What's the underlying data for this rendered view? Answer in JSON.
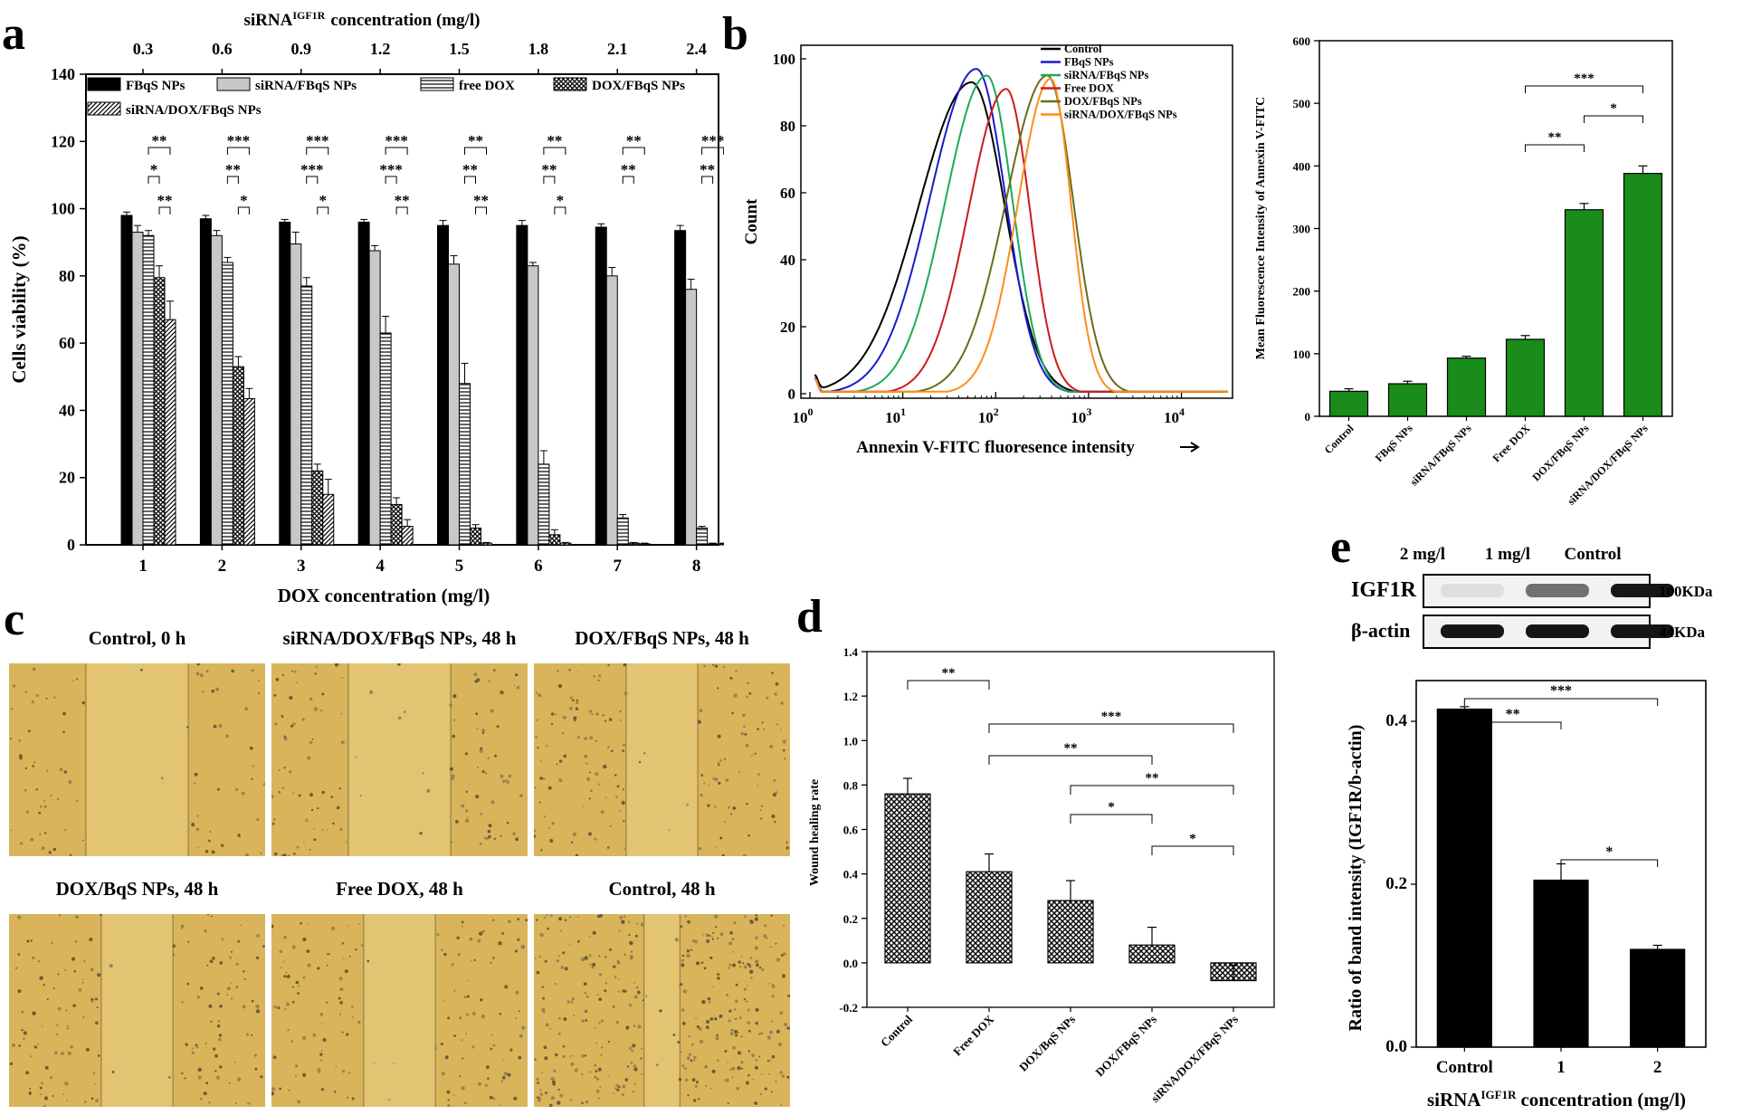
{
  "chart_data": [
    {
      "panel": "a",
      "type": "bar",
      "xlabel": "DOX concentration (mg/l)",
      "ylabel": "Cells viability (%)",
      "top_axis_label_main": "siRNA",
      "top_axis_label_sup": "IGF1R",
      "top_axis_label_rest": "concentration (mg/l)",
      "categories": [
        "1",
        "2",
        "3",
        "4",
        "5",
        "6",
        "7",
        "8"
      ],
      "top_categories": [
        "0.3",
        "0.6",
        "0.9",
        "1.2",
        "1.5",
        "1.8",
        "2.1",
        "2.4"
      ],
      "ylim": [
        0,
        140
      ],
      "yticks": [
        0,
        20,
        40,
        60,
        80,
        100,
        120,
        140
      ],
      "series": [
        {
          "name": "FBqS NPs",
          "fill": "solid-black",
          "values": [
            98,
            97,
            96,
            96,
            95,
            95,
            94.5,
            93.5
          ],
          "errors": [
            1,
            1,
            0.8,
            0.8,
            1.5,
            1.5,
            1,
            1.5
          ]
        },
        {
          "name": "siRNA/FBqS NPs",
          "fill": "light-gray",
          "values": [
            93,
            92,
            89.5,
            87.5,
            83.5,
            83,
            80,
            76
          ],
          "errors": [
            2,
            1.5,
            3.5,
            1.5,
            2.5,
            1,
            2.5,
            3
          ]
        },
        {
          "name": "free DOX",
          "fill": "horizontal-lines",
          "values": [
            92,
            84,
            77,
            63,
            48,
            24,
            8,
            5
          ],
          "errors": [
            1.5,
            1.5,
            2.5,
            5,
            6,
            4,
            1,
            0.5
          ]
        },
        {
          "name": "DOX/FBqS NPs",
          "fill": "crosshatch",
          "values": [
            79.5,
            53,
            22,
            12,
            5,
            3,
            0.5,
            0.3
          ],
          "errors": [
            3.5,
            3,
            2,
            2,
            1,
            1.5,
            0.2,
            0.2
          ]
        },
        {
          "name": "siRNA/DOX/FBqS NPs",
          "fill": "diagonal-lines",
          "values": [
            67,
            43.5,
            15,
            5.5,
            0.5,
            0.5,
            0.3,
            0.3
          ],
          "errors": [
            5.5,
            3,
            4.5,
            2,
            0.2,
            0.2,
            0.2,
            0.2
          ]
        }
      ],
      "significance_rows": [
        [
          "**",
          "***",
          "***",
          "***",
          "**",
          "**",
          "**",
          "***"
        ],
        [
          "*",
          "**",
          "***",
          "***",
          "**",
          "**",
          "**",
          "**"
        ],
        [
          "**",
          "*",
          "*",
          "**",
          "**",
          "*",
          "",
          ""
        ]
      ]
    },
    {
      "panel": "b-left",
      "type": "line",
      "xlabel": "Annexin V-FITC fluoresence intensity",
      "ylabel": "Count",
      "x_scale": "log",
      "xticks_base": "10",
      "xticks_exp": [
        "0",
        "1",
        "2",
        "3",
        "4"
      ],
      "ylim": [
        0,
        100
      ],
      "yticks": [
        0,
        20,
        40,
        60,
        80,
        100
      ],
      "series": [
        {
          "name": "Control",
          "color": "#000000",
          "peak_x": 55,
          "peak_y": 93,
          "width": 0.42
        },
        {
          "name": "FBqS NPs",
          "color": "#1a1acc",
          "peak_x": 62,
          "peak_y": 97,
          "width": 0.37
        },
        {
          "name": "siRNA/FBqS NPs",
          "color": "#1aaa5a",
          "peak_x": 80,
          "peak_y": 95,
          "width": 0.33
        },
        {
          "name": "Free DOX",
          "color": "#cc1a1a",
          "peak_x": 130,
          "peak_y": 91,
          "width": 0.3
        },
        {
          "name": "DOX/FBqS NPs",
          "color": "#6b6b1a",
          "peak_x": 360,
          "peak_y": 95,
          "width": 0.33
        },
        {
          "name": "siRNA/DOX/FBqS NPs",
          "color": "#ff8c1a",
          "peak_x": 390,
          "peak_y": 94,
          "width": 0.26
        }
      ]
    },
    {
      "panel": "b-right",
      "type": "bar",
      "ylabel": "Mean Fluorescence Intensity of Annexin V-FITC",
      "categories": [
        "Control",
        "FBqS NPs",
        "siRNA/FBqS NPs",
        "Free DOX",
        "DOX/FBqS NPs",
        "siRNA/DOX/FBqS NPs"
      ],
      "values": [
        40,
        52,
        93,
        123,
        330,
        388
      ],
      "errors": [
        4,
        4,
        3,
        6,
        10,
        12
      ],
      "color": "#1a8c1a",
      "ylim": [
        0,
        600
      ],
      "yticks": [
        0,
        100,
        200,
        300,
        400,
        500,
        600
      ],
      "significance": [
        {
          "from": 3,
          "to": 4,
          "label": "**"
        },
        {
          "from": 4,
          "to": 5,
          "label": "*"
        },
        {
          "from": 3,
          "to": 5,
          "label": "***"
        }
      ]
    },
    {
      "panel": "d",
      "type": "bar",
      "ylabel": "Wound healing rate",
      "categories": [
        "Control",
        "Free DOX",
        "DOX/BqS NPs",
        "DOX/FBqS NPs",
        "siRNA/DOX/FBqS NPs"
      ],
      "values": [
        0.76,
        0.41,
        0.28,
        0.08,
        -0.08
      ],
      "errors": [
        0.07,
        0.08,
        0.09,
        0.08,
        0.07
      ],
      "fill": "checker",
      "ylim": [
        -0.2,
        1.4
      ],
      "yticks": [
        -0.2,
        0.0,
        0.2,
        0.4,
        0.6,
        0.8,
        1.0,
        1.2,
        1.4
      ],
      "significance": [
        {
          "from": 0,
          "to": 1,
          "label": "**"
        },
        {
          "from": 1,
          "to": 4,
          "label": "***"
        },
        {
          "from": 1,
          "to": 3,
          "label": "**"
        },
        {
          "from": 2,
          "to": 4,
          "label": "**"
        },
        {
          "from": 2,
          "to": 3,
          "label": "*"
        },
        {
          "from": 3,
          "to": 4,
          "label": "*"
        }
      ]
    },
    {
      "panel": "e",
      "type": "bar",
      "ylabel": "Ratio of band intensity (IGF1R/b-actin)",
      "xlabel_main": "siRNA",
      "xlabel_sup": "IGF1R",
      "xlabel_rest": "concentration (mg/l)",
      "categories": [
        "Control",
        "1",
        "2"
      ],
      "values": [
        0.415,
        0.205,
        0.12
      ],
      "errors": [
        0.003,
        0.02,
        0.005
      ],
      "color": "#000000",
      "ylim": [
        0,
        0.45
      ],
      "yticks": [
        0.0,
        0.2,
        0.4
      ],
      "significance": [
        {
          "from": 0,
          "to": 1,
          "label": "**"
        },
        {
          "from": 0,
          "to": 2,
          "label": "***"
        },
        {
          "from": 1,
          "to": 2,
          "label": "*"
        }
      ]
    }
  ],
  "panels": {
    "a": "a",
    "b": "b",
    "c": "c",
    "d": "d",
    "e": "e"
  },
  "photos": [
    {
      "label": "Control, 0 h",
      "gap": "wide",
      "density": "low"
    },
    {
      "label": "siRNA/DOX/FBqS NPs, 48 h",
      "gap": "wide",
      "density": "mid"
    },
    {
      "label": "DOX/FBqS NPs, 48 h",
      "gap": "mid",
      "density": "mid"
    },
    {
      "label": "DOX/BqS NPs, 48 h",
      "gap": "mid",
      "density": "mid"
    },
    {
      "label": "Free DOX, 48 h",
      "gap": "mid",
      "density": "mid"
    },
    {
      "label": "Control, 48 h",
      "gap": "narrow",
      "density": "high"
    }
  ],
  "western_blot": {
    "lanes": [
      "2 mg/l",
      "1 mg/l",
      "Control"
    ],
    "bands": [
      {
        "name": "IGF1R",
        "size": "100KDa",
        "intensity": [
          0.08,
          0.55,
          0.95
        ]
      },
      {
        "name": "β-actin",
        "size": "44KDa",
        "intensity": [
          0.95,
          0.95,
          0.95
        ]
      }
    ]
  }
}
